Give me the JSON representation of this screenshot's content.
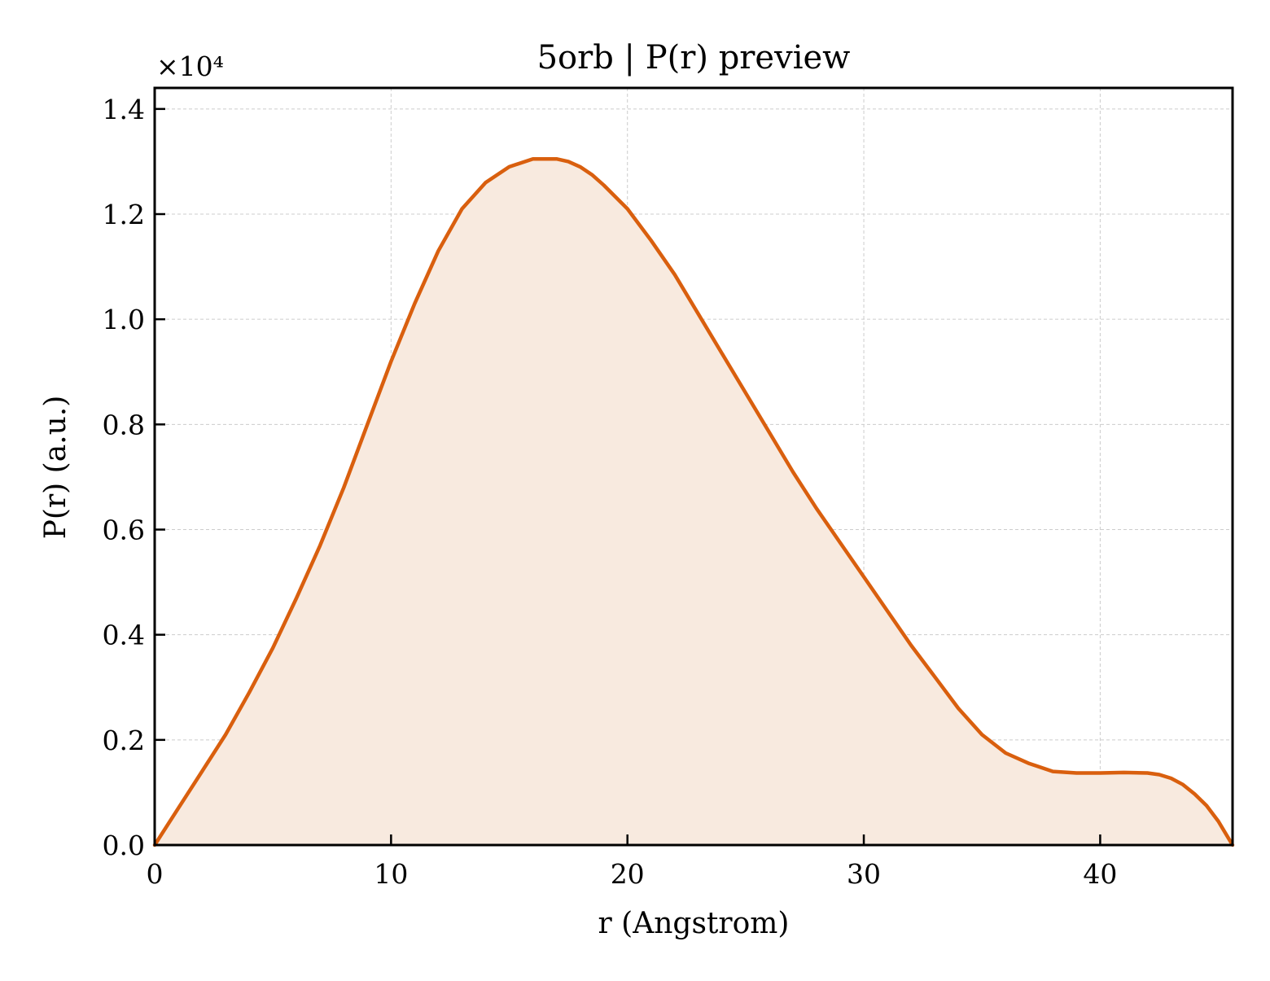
{
  "chart_data": {
    "type": "area",
    "title": "5orb | P(r) preview",
    "xlabel": "r (Angstrom)",
    "ylabel": "P(r) (a.u.)",
    "y_multiplier": "×10⁴",
    "xlim": [
      0,
      45.6
    ],
    "ylim": [
      0,
      1.44
    ],
    "x_ticks": [
      0,
      10,
      20,
      30,
      40
    ],
    "x_tick_labels": [
      "0",
      "10",
      "20",
      "30",
      "40"
    ],
    "y_ticks": [
      0,
      0.2,
      0.4,
      0.6,
      0.8,
      1.0,
      1.2,
      1.4
    ],
    "y_tick_labels": [
      "0.0",
      "0.2",
      "0.4",
      "0.6",
      "0.8",
      "1.0",
      "1.2",
      "1.4"
    ],
    "grid": true,
    "line_color": "#d95f0e",
    "fill_color": "#f8eadf",
    "series": [
      {
        "x": [
          0,
          1,
          2,
          3,
          4,
          5,
          6,
          7,
          8,
          9,
          10,
          11,
          12,
          13,
          14,
          15,
          16,
          17,
          17.5,
          18,
          18.5,
          19,
          20,
          21,
          22,
          23,
          24,
          25,
          26,
          27,
          28,
          29,
          30,
          31,
          32,
          33,
          34,
          35,
          36,
          37,
          38,
          39,
          40,
          41,
          42,
          42.5,
          43,
          43.5,
          44,
          44.5,
          45,
          45.6
        ],
        "y": [
          0,
          0.07,
          0.14,
          0.21,
          0.29,
          0.375,
          0.47,
          0.57,
          0.68,
          0.8,
          0.92,
          1.03,
          1.13,
          1.21,
          1.26,
          1.29,
          1.305,
          1.305,
          1.3,
          1.29,
          1.275,
          1.255,
          1.21,
          1.15,
          1.085,
          1.01,
          0.935,
          0.86,
          0.785,
          0.71,
          0.64,
          0.575,
          0.51,
          0.445,
          0.38,
          0.32,
          0.26,
          0.21,
          0.175,
          0.155,
          0.14,
          0.137,
          0.137,
          0.138,
          0.137,
          0.134,
          0.127,
          0.115,
          0.097,
          0.075,
          0.045,
          0.0
        ]
      }
    ]
  }
}
